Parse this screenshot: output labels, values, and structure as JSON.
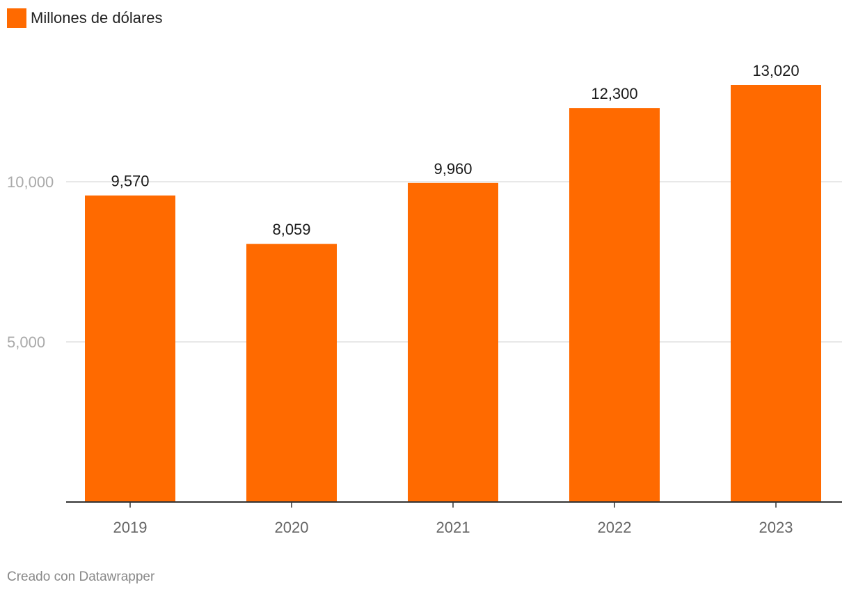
{
  "legend": {
    "label": "Millones de dólares",
    "color": "#ff6a00"
  },
  "credit": "Creado con Datawrapper",
  "chart_data": {
    "type": "bar",
    "categories": [
      "2019",
      "2020",
      "2021",
      "2022",
      "2023"
    ],
    "series": [
      {
        "name": "Millones de dólares",
        "values": [
          9570,
          8059,
          9960,
          12300,
          13020
        ],
        "value_labels": [
          "9,570",
          "8,059",
          "9,960",
          "12,300",
          "13,020"
        ]
      }
    ],
    "yticks": [
      5000,
      10000
    ],
    "ytick_labels": [
      "5,000",
      "10,000"
    ],
    "ylim": [
      0,
      13020
    ],
    "grid": true,
    "legend_position": "top-left",
    "bar_color": "#ff6a00"
  }
}
